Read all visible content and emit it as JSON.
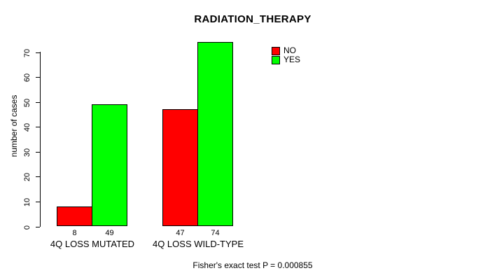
{
  "chart_data": {
    "type": "bar",
    "title": "RADIATION_THERAPY",
    "ylabel": "number of cases",
    "xlabel": "",
    "categories": [
      "4Q LOSS MUTATED",
      "4Q LOSS WILD-TYPE"
    ],
    "series": [
      {
        "name": "NO",
        "color": "#FF0000",
        "values": [
          8,
          47
        ]
      },
      {
        "name": "YES",
        "color": "#00FF00",
        "values": [
          49,
          74
        ]
      }
    ],
    "bar_value_labels": [
      [
        8,
        49
      ],
      [
        47,
        74
      ]
    ],
    "yticks": [
      0,
      10,
      20,
      30,
      40,
      50,
      60,
      70
    ],
    "ylim": [
      0,
      74
    ],
    "grid": false,
    "legend_position": "top-right",
    "annotation": "Fisher's exact test P = 0.000855",
    "colors": {
      "background": "#FFFFFF",
      "axis": "#000000",
      "text": "#000000"
    }
  }
}
